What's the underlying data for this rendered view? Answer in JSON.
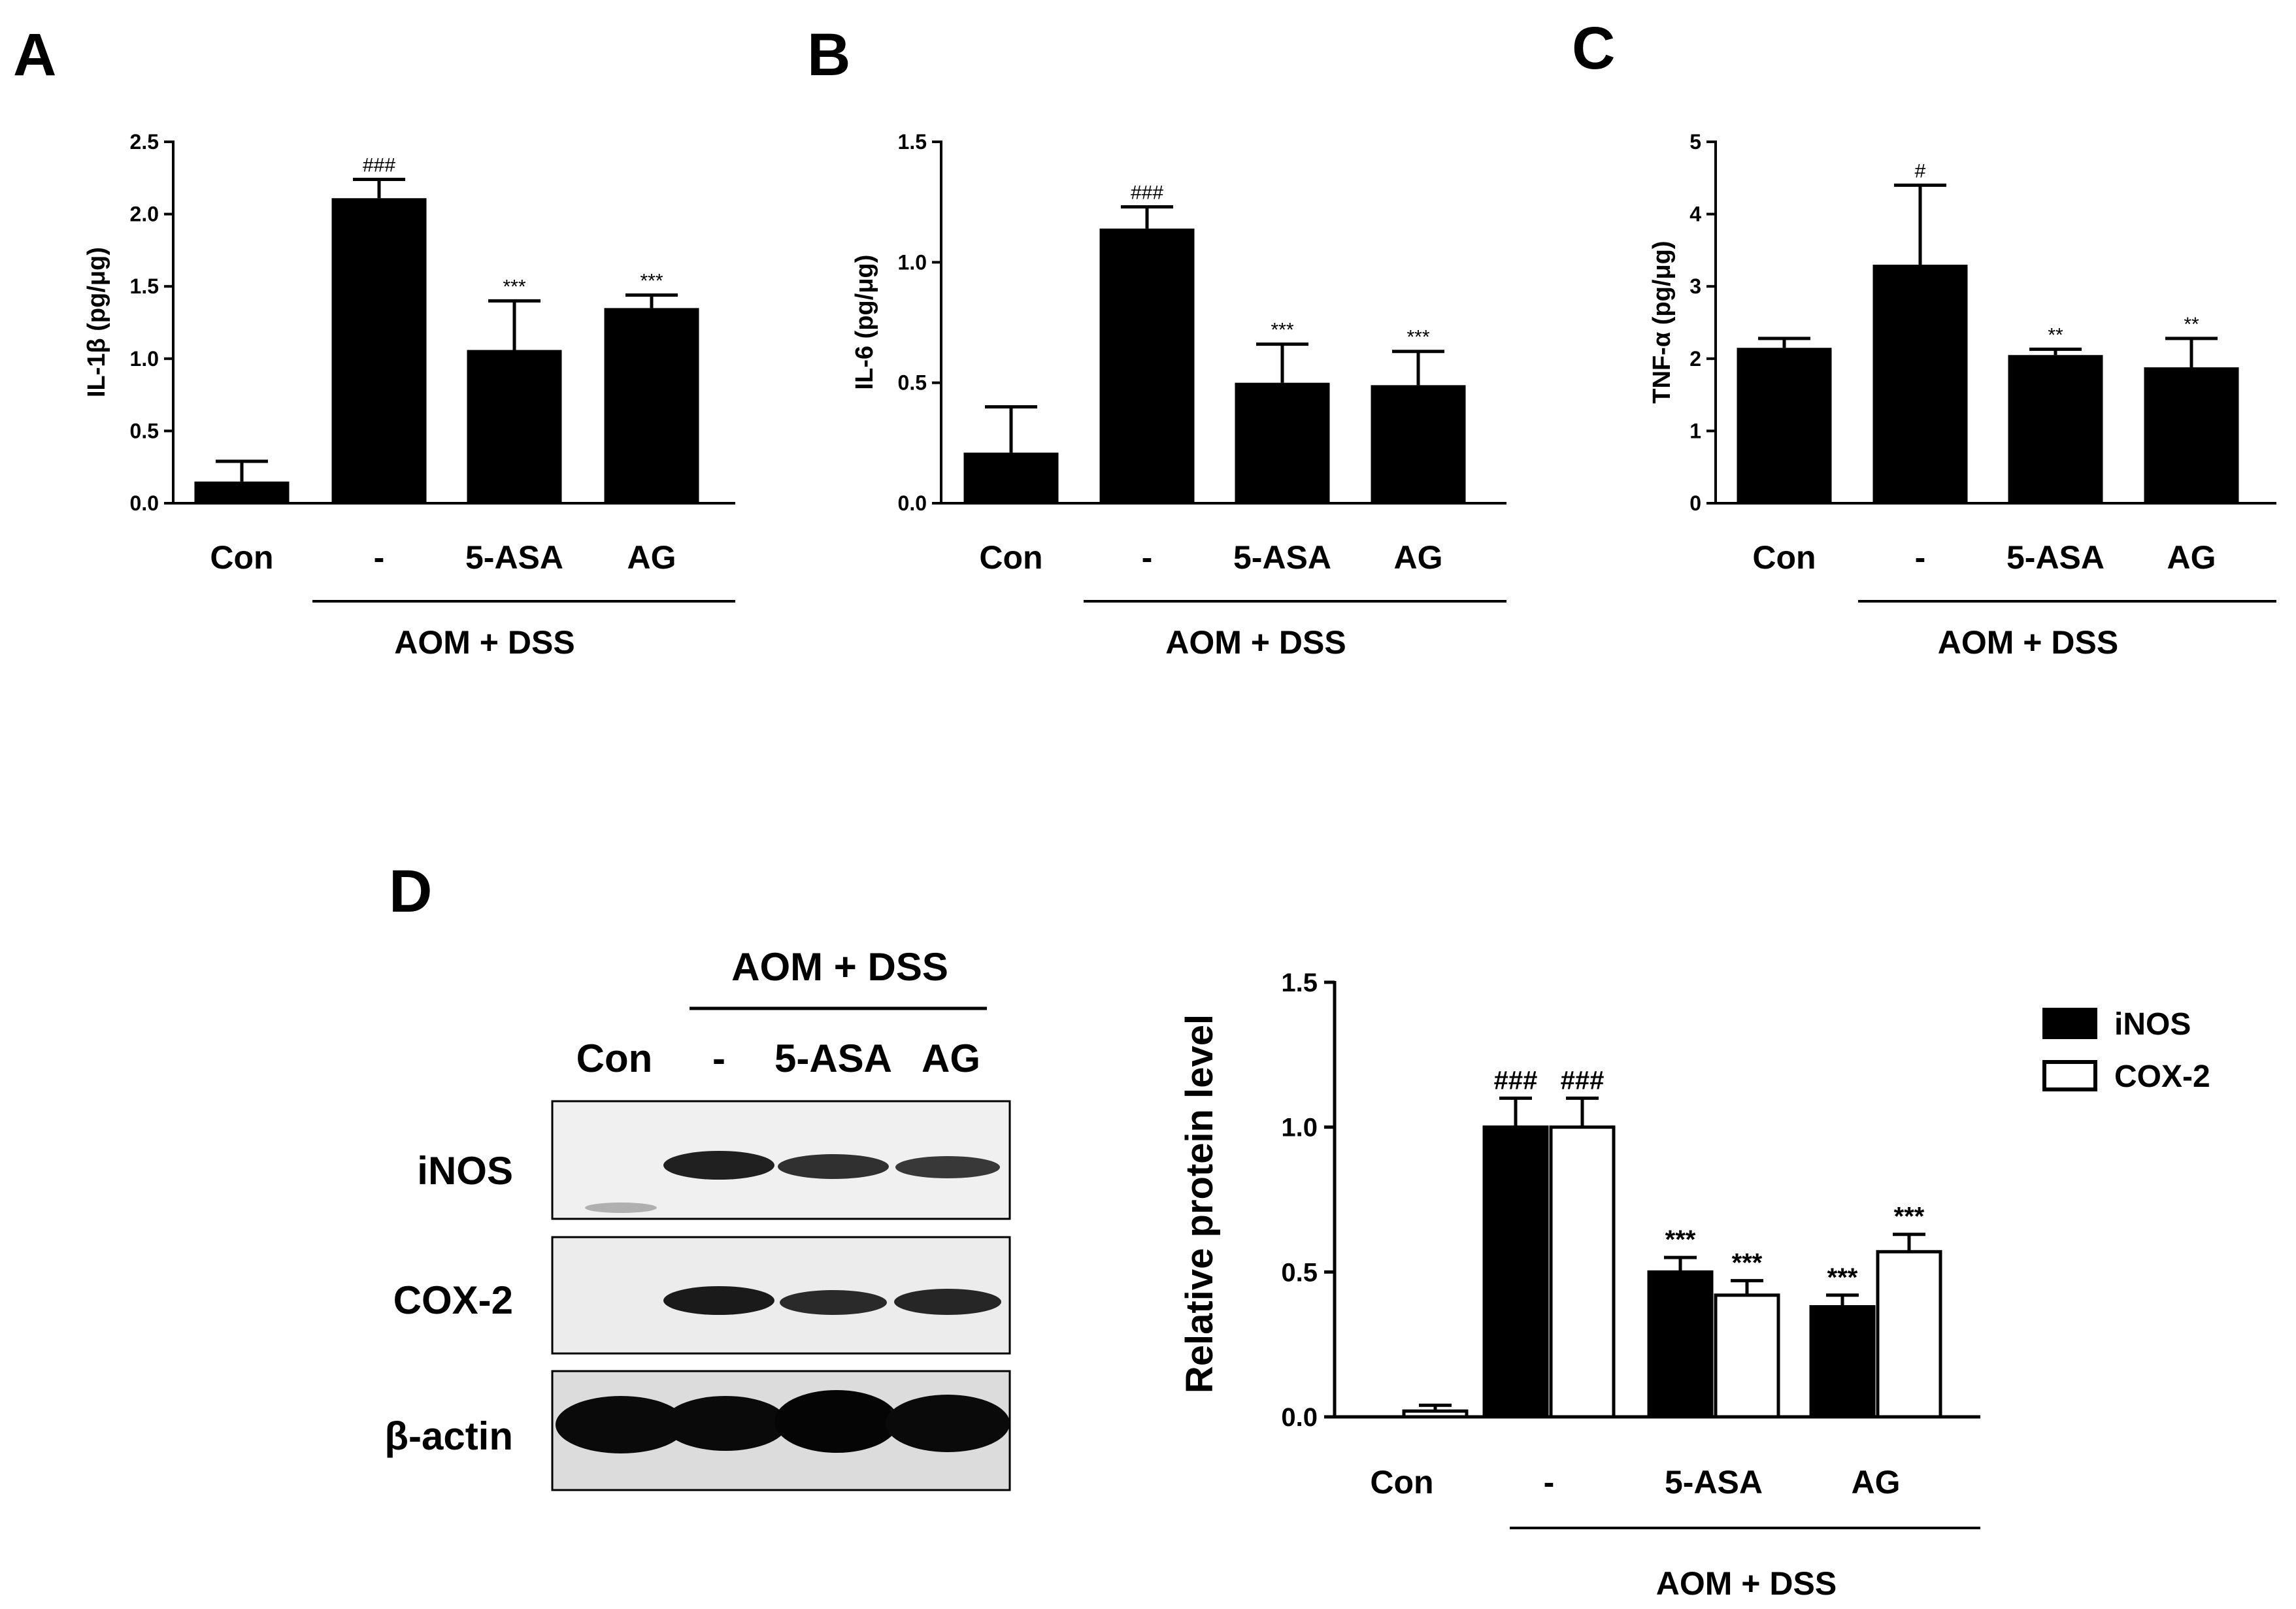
{
  "panels": {
    "a": "A",
    "b": "B",
    "c": "C",
    "d": "D"
  },
  "group_label": "AOM + DSS",
  "chart_data": [
    {
      "type": "bar",
      "panel": "A",
      "ylabel": "IL-1β (pg/μg)",
      "ylim": [
        0,
        2.5
      ],
      "yticks": [
        "0.0",
        "0.5",
        "1.0",
        "1.5",
        "2.0",
        "2.5"
      ],
      "ytick_values": [
        0,
        0.5,
        1.0,
        1.5,
        2.0,
        2.5
      ],
      "categories": [
        "Con",
        "-",
        "5-ASA",
        "AG"
      ],
      "values": [
        0.15,
        2.11,
        1.06,
        1.35
      ],
      "errors": [
        0.14,
        0.13,
        0.34,
        0.09
      ],
      "annotations": [
        "",
        "###",
        "***",
        "***"
      ],
      "group": "AOM + DSS"
    },
    {
      "type": "bar",
      "panel": "B",
      "ylabel": "IL-6 (pg/μg)",
      "ylim": [
        0,
        1.5
      ],
      "yticks": [
        "0.0",
        "0.5",
        "1.0",
        "1.5"
      ],
      "ytick_values": [
        0,
        0.5,
        1.0,
        1.5
      ],
      "categories": [
        "Con",
        "-",
        "5-ASA",
        "AG"
      ],
      "values": [
        0.21,
        1.14,
        0.5,
        0.49
      ],
      "errors": [
        0.19,
        0.09,
        0.16,
        0.14
      ],
      "annotations": [
        "",
        "###",
        "***",
        "***"
      ],
      "group": "AOM + DSS"
    },
    {
      "type": "bar",
      "panel": "C",
      "ylabel": "TNF-α (pg/μg)",
      "ylim": [
        0,
        5
      ],
      "yticks": [
        "0",
        "1",
        "2",
        "3",
        "4",
        "5"
      ],
      "ytick_values": [
        0,
        1,
        2,
        3,
        4,
        5
      ],
      "categories": [
        "Con",
        "-",
        "5-ASA",
        "AG"
      ],
      "values": [
        2.15,
        3.3,
        2.05,
        1.88
      ],
      "errors": [
        0.13,
        1.1,
        0.08,
        0.4
      ],
      "annotations": [
        "",
        "#",
        "**",
        "**"
      ],
      "group": "AOM + DSS"
    },
    {
      "type": "bar",
      "panel": "D",
      "ylabel": "Relative protein level",
      "ylim": [
        0,
        1.5
      ],
      "yticks": [
        "0.0",
        "0.5",
        "1.0",
        "1.5"
      ],
      "ytick_values": [
        0,
        0.5,
        1.0,
        1.5
      ],
      "categories": [
        "Con",
        "-",
        "5-ASA",
        "AG"
      ],
      "series": [
        {
          "name": "iNOS",
          "values": [
            0,
            1.0,
            0.5,
            0.38
          ],
          "errors": [
            0,
            0.1,
            0.05,
            0.04
          ],
          "annotations": [
            "",
            "###",
            "***",
            "***"
          ],
          "color": "#000000"
        },
        {
          "name": "COX-2",
          "values": [
            0.02,
            1.0,
            0.42,
            0.57
          ],
          "errors": [
            0.02,
            0.1,
            0.05,
            0.06
          ],
          "annotations": [
            "",
            "###",
            "***",
            "***"
          ],
          "color": "#ffffff"
        }
      ],
      "legend_position": "top-right",
      "group": "AOM + DSS"
    }
  ],
  "blot": {
    "header": "AOM + DSS",
    "lanes": [
      "Con",
      "-",
      "5-ASA",
      "AG"
    ],
    "rows": [
      "iNOS",
      "COX-2",
      "β-actin"
    ]
  }
}
